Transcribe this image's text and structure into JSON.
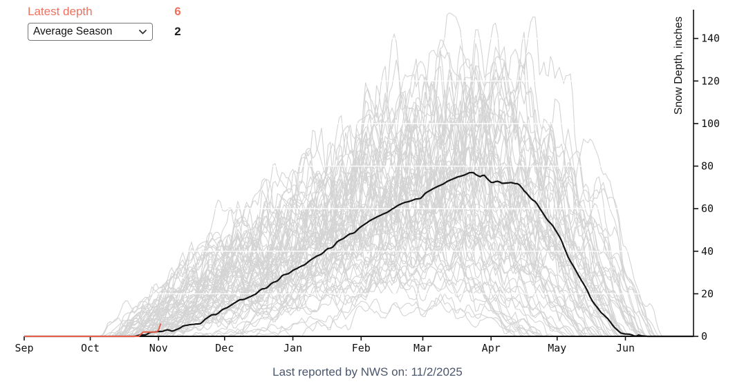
{
  "controls": {
    "latest_label": "Latest depth",
    "latest_value": "6",
    "season_selected": "Average Season",
    "season_value": "2"
  },
  "caption": "Last reported by NWS on: 11/2/2025",
  "colors": {
    "accent_red_text": "#f0705e",
    "latest_line_red": "#e8604a",
    "average_line_black": "#141414",
    "season_line_gray": "#d4d4d4",
    "gridline_white": "rgba(255,255,255,0.85)",
    "axis": "#111111",
    "caption_text": "#4a566b"
  },
  "chart_data": {
    "type": "line",
    "title": "",
    "xlabel": "",
    "ylabel": "Snow Depth, inches",
    "x_tick_labels": [
      "Sep",
      "Oct",
      "Nov",
      "Dec",
      "Jan",
      "Feb",
      "Mar",
      "Apr",
      "May",
      "Jun"
    ],
    "month_day_offsets": [
      0,
      30,
      61,
      91,
      122,
      153,
      181,
      212,
      242,
      273
    ],
    "x_range_days": [
      0,
      304
    ],
    "ylim": [
      0,
      153
    ],
    "y_ticks": [
      0,
      20,
      40,
      60,
      80,
      100,
      120,
      140
    ],
    "grid": "white horizontal lines at y tick levels over gray seasons",
    "legend": "none",
    "series": [
      {
        "name": "Average Season",
        "color": "black",
        "points": [
          [
            0,
            0
          ],
          [
            50,
            0
          ],
          [
            55,
            1.2
          ],
          [
            61,
            2.5
          ],
          [
            67,
            3
          ],
          [
            73,
            4.5
          ],
          [
            80,
            6.5
          ],
          [
            86,
            10
          ],
          [
            92,
            13.5
          ],
          [
            98,
            17
          ],
          [
            105,
            20
          ],
          [
            111,
            24
          ],
          [
            117,
            28
          ],
          [
            124,
            31.5
          ],
          [
            130,
            35.5
          ],
          [
            136,
            39.5
          ],
          [
            142,
            44
          ],
          [
            149,
            48.5
          ],
          [
            155,
            53
          ],
          [
            161,
            56.5
          ],
          [
            167,
            60
          ],
          [
            174,
            63
          ],
          [
            180,
            65.5
          ],
          [
            186,
            69.5
          ],
          [
            192,
            73
          ],
          [
            197,
            75.5
          ],
          [
            202,
            76.8
          ],
          [
            204,
            77
          ],
          [
            207,
            74.8
          ],
          [
            209,
            76
          ],
          [
            212,
            73
          ],
          [
            217,
            72.3
          ],
          [
            221,
            72.6
          ],
          [
            224,
            71.5
          ],
          [
            228,
            68
          ],
          [
            232,
            63
          ],
          [
            236,
            57.5
          ],
          [
            240,
            52
          ],
          [
            244,
            45
          ],
          [
            247,
            37.5
          ],
          [
            251,
            30
          ],
          [
            255,
            22.5
          ],
          [
            259,
            15
          ],
          [
            262,
            10.5
          ],
          [
            265,
            8
          ],
          [
            268,
            4.5
          ],
          [
            271,
            2
          ],
          [
            275,
            1
          ],
          [
            279,
            0.4
          ],
          [
            283,
            0
          ],
          [
            304,
            0
          ]
        ]
      },
      {
        "name": "Latest depth (current season)",
        "color": "red",
        "points": [
          [
            0,
            0
          ],
          [
            52,
            0
          ],
          [
            54,
            2
          ],
          [
            60,
            2
          ],
          [
            61,
            3
          ],
          [
            62,
            6
          ]
        ]
      }
    ],
    "background_seasons": {
      "name": "Historical seasons ensemble",
      "color": "gray",
      "count": 70,
      "seasons": [
        [
          40,
          212,
          141,
          290,
          101
        ],
        [
          53,
          218,
          130,
          286,
          102
        ],
        [
          45,
          206,
          122,
          287,
          103
        ],
        [
          58,
          214,
          116,
          288,
          104
        ],
        [
          38,
          198,
          112,
          283,
          105
        ],
        [
          60,
          210,
          108,
          285,
          106
        ],
        [
          42,
          196,
          106,
          281,
          107
        ],
        [
          50,
          215,
          104,
          290,
          108
        ],
        [
          35,
          204,
          102,
          284,
          109
        ],
        [
          56,
          200,
          100,
          281,
          110
        ],
        [
          44,
          208,
          98,
          284,
          111
        ],
        [
          52,
          196,
          96,
          279,
          112
        ],
        [
          47,
          202,
          93,
          281,
          113
        ],
        [
          62,
          210,
          91,
          283,
          114
        ],
        [
          39,
          190,
          89,
          275,
          115
        ],
        [
          55,
          206,
          87,
          280,
          116
        ],
        [
          43,
          200,
          85,
          272,
          117
        ],
        [
          64,
          204,
          83,
          274,
          118
        ],
        [
          49,
          194,
          81,
          268,
          119
        ],
        [
          36,
          200,
          79,
          271,
          120
        ],
        [
          57,
          207,
          77,
          275,
          121
        ],
        [
          46,
          188,
          75,
          266,
          122
        ],
        [
          53,
          198,
          73,
          269,
          123
        ],
        [
          41,
          192,
          71,
          264,
          124
        ],
        [
          60,
          202,
          69,
          270,
          125
        ],
        [
          48,
          184,
          67,
          262,
          126
        ],
        [
          37,
          196,
          65,
          265,
          127
        ],
        [
          55,
          188,
          63,
          260,
          128
        ],
        [
          44,
          181,
          61,
          258,
          129
        ],
        [
          51,
          192,
          59,
          261,
          130
        ],
        [
          63,
          184,
          57,
          256,
          131
        ],
        [
          40,
          177,
          55,
          253,
          132
        ],
        [
          56,
          186,
          52,
          255,
          133
        ],
        [
          46,
          173,
          50,
          250,
          134
        ],
        [
          34,
          181,
          48,
          248,
          135
        ],
        [
          58,
          177,
          45,
          246,
          136
        ],
        [
          50,
          169,
          43,
          243,
          137
        ],
        [
          43,
          179,
          41,
          241,
          138
        ],
        [
          61,
          165,
          39,
          238,
          139
        ],
        [
          47,
          171,
          37,
          234,
          140
        ],
        [
          54,
          159,
          35,
          230,
          141
        ],
        [
          38,
          167,
          33,
          228,
          142
        ],
        [
          48,
          210,
          114,
          287,
          143
        ],
        [
          52,
          204,
          110,
          285,
          144
        ],
        [
          59,
          200,
          90,
          280,
          145
        ],
        [
          45,
          194,
          70,
          267,
          146
        ],
        [
          36,
          175,
          30,
          236,
          147
        ],
        [
          65,
          161,
          28,
          232,
          148
        ],
        [
          49,
          157,
          26,
          230,
          149
        ],
        [
          42,
          153,
          22,
          226,
          150
        ],
        [
          44,
          186,
          110,
          281,
          151
        ],
        [
          50,
          178,
          104,
          277,
          152
        ],
        [
          40,
          182,
          98,
          275,
          153
        ],
        [
          57,
          174,
          95,
          273,
          154
        ],
        [
          46,
          190,
          107,
          283,
          155
        ],
        [
          53,
          170,
          90,
          271,
          156
        ],
        [
          72,
          190,
          85,
          277,
          157
        ],
        [
          80,
          196,
          72,
          273,
          158
        ],
        [
          88,
          200,
          60,
          269,
          159
        ],
        [
          75,
          184,
          55,
          263,
          160
        ],
        [
          95,
          192,
          48,
          261,
          161
        ],
        [
          70,
          176,
          40,
          253,
          162
        ],
        [
          85,
          170,
          18,
          238,
          163
        ],
        [
          78,
          162,
          15,
          232,
          164
        ],
        [
          42,
          168,
          88,
          270,
          165
        ],
        [
          55,
          162,
          76,
          266,
          166
        ],
        [
          48,
          156,
          64,
          258,
          167
        ],
        [
          39,
          160,
          58,
          254,
          168
        ],
        [
          62,
          166,
          70,
          262,
          169
        ],
        [
          51,
          152,
          55,
          250,
          170
        ]
      ],
      "season_spec_format": [
        "onset_day",
        "peak_day",
        "peak_inches",
        "end_day",
        "seed"
      ]
    }
  }
}
